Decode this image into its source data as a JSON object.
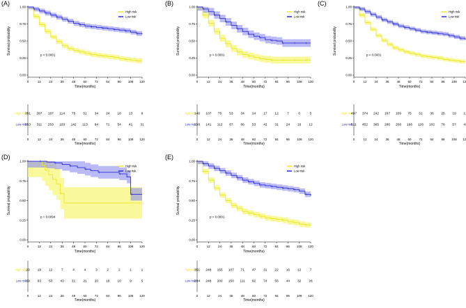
{
  "figure": {
    "type": "kaplan-meier-survival-grid"
  },
  "colors": {
    "high": "#e8e82a",
    "highFill": "#f7f77a",
    "low": "#2b2bd4",
    "lowFill": "#8c8cf0",
    "axis": "#000000"
  },
  "chart_data": [
    {
      "panel": "(A)",
      "type": "line",
      "ylabel": "Survival probability",
      "xlabel": "Time(months)",
      "xlim": [
        0,
        120
      ],
      "ylim": [
        0,
        1
      ],
      "x_ticks": [
        0,
        12,
        24,
        36,
        48,
        60,
        72,
        84,
        96,
        108,
        120
      ],
      "y_ticks": [
        "0.00",
        "0.25",
        "0.50",
        "0.75",
        "1.00"
      ],
      "pvalue": "p < 0.0001",
      "series": [
        {
          "name": "High risk",
          "key": "high",
          "x": [
            0,
            6,
            12,
            18,
            24,
            30,
            36,
            42,
            48,
            54,
            60,
            66,
            72,
            78,
            84,
            90,
            96,
            102,
            108,
            114,
            120
          ],
          "y": [
            1.0,
            0.86,
            0.74,
            0.64,
            0.56,
            0.49,
            0.43,
            0.39,
            0.36,
            0.34,
            0.32,
            0.3,
            0.29,
            0.28,
            0.27,
            0.26,
            0.24,
            0.23,
            0.22,
            0.21,
            0.21
          ],
          "band": 0.035
        },
        {
          "name": "Low risk",
          "key": "low",
          "x": [
            0,
            6,
            12,
            18,
            24,
            30,
            36,
            42,
            48,
            54,
            60,
            66,
            72,
            78,
            84,
            90,
            96,
            102,
            108,
            114,
            120
          ],
          "y": [
            1.0,
            0.97,
            0.94,
            0.91,
            0.88,
            0.85,
            0.82,
            0.79,
            0.76,
            0.74,
            0.72,
            0.71,
            0.7,
            0.69,
            0.68,
            0.67,
            0.66,
            0.65,
            0.63,
            0.61,
            0.6
          ],
          "band": 0.035
        }
      ],
      "risk_table": {
        "x": [
          0,
          12,
          24,
          36,
          48,
          60,
          72,
          84,
          96,
          108,
          120
        ],
        "rows": [
          {
            "label": "High risk",
            "key": "high",
            "values": [
              "351",
              "287",
              "167",
              "114",
              "75",
              "51",
              "34",
              "24",
              "18",
              "13",
              "8"
            ]
          },
          {
            "label": "Low risk",
            "key": "low",
            "values": [
              "353",
              "311",
              "253",
              "193",
              "142",
              "113",
              "84",
              "71",
              "54",
              "41",
              "31"
            ]
          }
        ]
      }
    },
    {
      "panel": "(B)",
      "type": "line",
      "ylabel": "Survival probability",
      "xlabel": "Time(months)",
      "xlim": [
        0,
        120
      ],
      "ylim": [
        0,
        1
      ],
      "x_ticks": [
        0,
        12,
        24,
        36,
        48,
        60,
        72,
        84,
        96,
        108,
        120
      ],
      "y_ticks": [
        "0.00",
        "0.25",
        "0.50",
        "0.75",
        "1.00"
      ],
      "pvalue": "p < 0.0001",
      "series": [
        {
          "name": "High risk",
          "key": "high",
          "x": [
            0,
            6,
            12,
            18,
            24,
            30,
            36,
            42,
            48,
            54,
            60,
            66,
            72,
            78,
            84,
            90,
            96,
            102,
            108,
            114,
            120
          ],
          "y": [
            1.0,
            0.88,
            0.76,
            0.64,
            0.54,
            0.46,
            0.39,
            0.34,
            0.3,
            0.28,
            0.26,
            0.24,
            0.23,
            0.22,
            0.22,
            0.22,
            0.22,
            0.22,
            0.22,
            0.22,
            0.22
          ],
          "band": 0.05
        },
        {
          "name": "Low risk",
          "key": "low",
          "x": [
            0,
            6,
            12,
            18,
            24,
            30,
            36,
            42,
            48,
            54,
            60,
            66,
            72,
            78,
            84,
            90,
            96,
            102,
            108,
            114,
            120
          ],
          "y": [
            1.0,
            0.97,
            0.93,
            0.88,
            0.83,
            0.78,
            0.73,
            0.68,
            0.64,
            0.6,
            0.57,
            0.55,
            0.52,
            0.51,
            0.5,
            0.47,
            0.47,
            0.47,
            0.47,
            0.47,
            0.47
          ],
          "band": 0.055
        }
      ],
      "risk_table": {
        "x": [
          0,
          12,
          24,
          36,
          48,
          60,
          72,
          84,
          96,
          108,
          120
        ],
        "rows": [
          {
            "label": "High risk",
            "key": "high",
            "values": [
              "146",
              "107",
              "75",
              "53",
              "34",
              "24",
              "17",
              "12",
              "7",
              "6",
              "5"
            ]
          },
          {
            "label": "Low risk",
            "key": "low",
            "values": [
              "158",
              "141",
              "112",
              "87",
              "66",
              "53",
              "42",
              "31",
              "24",
              "16",
              "12"
            ]
          }
        ]
      }
    },
    {
      "panel": "(C)",
      "type": "line",
      "ylabel": "Survival probability",
      "xlabel": "Time(months)",
      "xlim": [
        0,
        120
      ],
      "ylim": [
        0,
        1
      ],
      "x_ticks": [
        0,
        12,
        24,
        36,
        48,
        60,
        72,
        84,
        96,
        108,
        120
      ],
      "y_ticks": [
        "0.00",
        "0.25",
        "0.50",
        "0.75",
        "1.00"
      ],
      "pvalue": "p < 0.0001",
      "series": [
        {
          "name": "High risk",
          "key": "high",
          "x": [
            0,
            6,
            12,
            18,
            24,
            30,
            36,
            42,
            48,
            54,
            60,
            66,
            72,
            78,
            84,
            90,
            96,
            102,
            108,
            114,
            120
          ],
          "y": [
            1.0,
            0.88,
            0.77,
            0.67,
            0.58,
            0.51,
            0.45,
            0.4,
            0.37,
            0.34,
            0.32,
            0.3,
            0.28,
            0.27,
            0.26,
            0.25,
            0.23,
            0.22,
            0.21,
            0.2,
            0.2
          ],
          "band": 0.03
        },
        {
          "name": "Low risk",
          "key": "low",
          "x": [
            0,
            6,
            12,
            18,
            24,
            30,
            36,
            42,
            48,
            54,
            60,
            66,
            72,
            78,
            84,
            90,
            96,
            102,
            108,
            114,
            120
          ],
          "y": [
            1.0,
            0.97,
            0.93,
            0.89,
            0.85,
            0.81,
            0.78,
            0.75,
            0.72,
            0.7,
            0.68,
            0.66,
            0.64,
            0.63,
            0.62,
            0.61,
            0.6,
            0.58,
            0.56,
            0.54,
            0.52
          ],
          "band": 0.03
        }
      ],
      "risk_table": {
        "x": [
          0,
          12,
          24,
          36,
          48,
          60,
          72,
          84,
          96,
          108,
          120
        ],
        "rows": [
          {
            "label": "High risk",
            "key": "high",
            "values": [
              "497",
              "374",
              "242",
              "167",
              "109",
              "75",
              "51",
              "36",
              "25",
              "19",
              "13"
            ]
          },
          {
            "label": "Low risk",
            "key": "low",
            "values": [
              "511",
              "452",
              "365",
              "280",
              "208",
              "166",
              "126",
              "102",
              "78",
              "57",
              "43"
            ]
          }
        ]
      }
    },
    {
      "panel": "(D)",
      "type": "line",
      "ylabel": "Survival probability",
      "xlabel": "Time(months)",
      "xlim": [
        0,
        120
      ],
      "ylim": [
        0,
        1
      ],
      "x_ticks": [
        0,
        12,
        24,
        36,
        48,
        60,
        72,
        84,
        96,
        108,
        120
      ],
      "y_ticks": [
        "0.00",
        "0.25",
        "0.50",
        "0.75",
        "1.00"
      ],
      "pvalue": "p = 0.0094",
      "series": [
        {
          "name": "High risk",
          "key": "high",
          "x": [
            0,
            12,
            15,
            18,
            22,
            26,
            30,
            34,
            38,
            120
          ],
          "y": [
            1.0,
            1.0,
            0.95,
            0.89,
            0.83,
            0.77,
            0.71,
            0.59,
            0.47,
            0.47
          ],
          "band": 0.2
        },
        {
          "name": "Low risk",
          "key": "low",
          "x": [
            0,
            12,
            20,
            28,
            36,
            44,
            52,
            60,
            66,
            74,
            84,
            96,
            104,
            108,
            120
          ],
          "y": [
            1.0,
            1.0,
            0.99,
            0.98,
            0.96,
            0.94,
            0.92,
            0.9,
            0.88,
            0.86,
            0.86,
            0.84,
            0.8,
            0.58,
            0.58
          ],
          "band": 0.08
        }
      ],
      "risk_table": {
        "x": [
          0,
          12,
          24,
          36,
          48,
          60,
          72,
          84,
          96,
          108,
          120
        ],
        "rows": [
          {
            "label": "High risk",
            "key": "high",
            "values": [
              "20",
              "19",
              "12",
              "7",
              "4",
              "4",
              "3",
              "2",
              "2",
              "1",
              "1"
            ]
          },
          {
            "label": "Low risk",
            "key": "low",
            "values": [
              "69",
              "63",
              "53",
              "43",
              "31",
              "21",
              "20",
              "16",
              "10",
              "9",
              "5"
            ]
          }
        ]
      }
    },
    {
      "panel": "(E)",
      "type": "line",
      "ylabel": "Survival probability",
      "xlabel": "Time(months)",
      "xlim": [
        0,
        120
      ],
      "ylim": [
        0,
        1
      ],
      "x_ticks": [
        0,
        12,
        24,
        36,
        48,
        60,
        72,
        84,
        96,
        108,
        120
      ],
      "y_ticks": [
        "0.00",
        "0.25",
        "0.50",
        "0.75",
        "1.00"
      ],
      "pvalue": "p < 0.0001",
      "series": [
        {
          "name": "High risk",
          "key": "high",
          "x": [
            0,
            6,
            12,
            18,
            24,
            30,
            36,
            42,
            48,
            54,
            60,
            66,
            72,
            78,
            84,
            90,
            96,
            102,
            108,
            114,
            120
          ],
          "y": [
            1.0,
            0.87,
            0.76,
            0.66,
            0.57,
            0.5,
            0.44,
            0.4,
            0.36,
            0.34,
            0.32,
            0.3,
            0.28,
            0.27,
            0.26,
            0.25,
            0.23,
            0.22,
            0.2,
            0.19,
            0.18
          ],
          "band": 0.035
        },
        {
          "name": "Low risk",
          "key": "low",
          "x": [
            0,
            6,
            12,
            18,
            24,
            30,
            36,
            42,
            48,
            54,
            60,
            66,
            72,
            78,
            84,
            90,
            96,
            102,
            108,
            114,
            120
          ],
          "y": [
            1.0,
            0.97,
            0.94,
            0.91,
            0.88,
            0.85,
            0.82,
            0.79,
            0.76,
            0.74,
            0.72,
            0.7,
            0.69,
            0.68,
            0.67,
            0.66,
            0.65,
            0.64,
            0.62,
            0.58,
            0.56
          ],
          "band": 0.035
        }
      ],
      "risk_table": {
        "x": [
          0,
          12,
          24,
          36,
          48,
          60,
          72,
          84,
          96,
          108,
          120
        ],
        "rows": [
          {
            "label": "High risk",
            "key": "high",
            "values": [
              "351",
              "248",
              "155",
              "107",
              "71",
              "47",
              "31",
              "22",
              "16",
              "12",
              "7"
            ]
          },
          {
            "label": "Low risk",
            "key": "low",
            "values": [
              "284",
              "248",
              "200",
              "150",
              "111",
              "92",
              "74",
              "55",
              "44",
              "32",
              "26"
            ]
          }
        ]
      }
    }
  ]
}
